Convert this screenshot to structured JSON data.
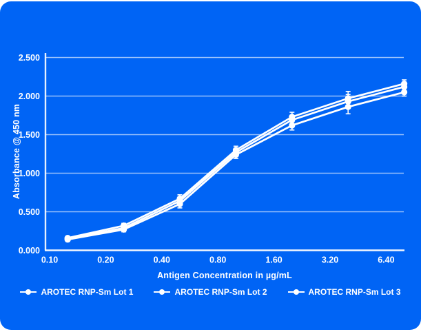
{
  "card": {
    "background_color": "#0064f5",
    "page_background": "#ffffff",
    "text_color": "#ffffff",
    "grid_color": "rgba(255,255,255,0.6)"
  },
  "chart_data": {
    "type": "line",
    "title": "",
    "xlabel": "Antigen Concentration in µg/mL",
    "ylabel": "Absorbance @ 450 nm",
    "x_scale": "log2",
    "grid": true,
    "legend_position": "bottom",
    "x": [
      0.125,
      0.25,
      0.5,
      1.0,
      2.0,
      4.0,
      8.0
    ],
    "x_tick_values": [
      0.1,
      0.2,
      0.4,
      0.8,
      1.6,
      3.2,
      6.4
    ],
    "x_tick_labels": [
      "0.10",
      "0.20",
      "0.40",
      "0.80",
      "1.60",
      "3.20",
      "6.40"
    ],
    "ylim": [
      0,
      2.5
    ],
    "y_tick_values": [
      0,
      0.5,
      1.0,
      1.5,
      2.0,
      2.5
    ],
    "y_tick_labels": [
      "0.000",
      "0.500",
      "1.000",
      "1.500",
      "2.000",
      "2.500"
    ],
    "series": [
      {
        "name": "AROTEC RNP-Sm Lot 1",
        "values": [
          0.16,
          0.32,
          0.67,
          1.3,
          1.73,
          1.97,
          2.16
        ]
      },
      {
        "name": "AROTEC RNP-Sm Lot 2",
        "values": [
          0.15,
          0.29,
          0.64,
          1.27,
          1.69,
          1.93,
          2.12
        ]
      },
      {
        "name": "AROTEC RNP-Sm Lot 3",
        "values": [
          0.14,
          0.27,
          0.6,
          1.24,
          1.62,
          1.86,
          2.05
        ]
      }
    ],
    "error_bars": [
      0.02,
      0.03,
      0.05,
      0.05,
      0.06,
      0.09,
      0.05
    ],
    "series_color": "#ffffff"
  }
}
